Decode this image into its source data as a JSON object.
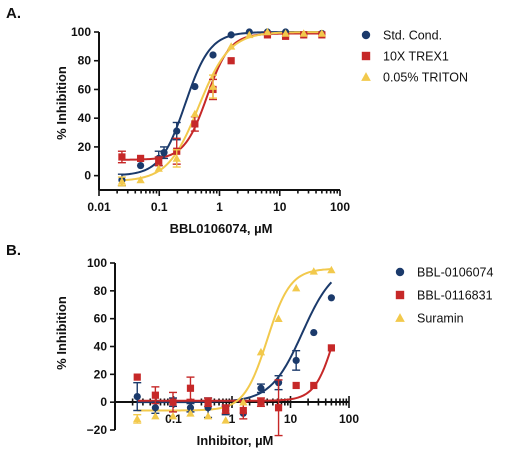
{
  "colors": {
    "std": "#1b3a6b",
    "trex": "#c62828",
    "triton": "#f2c94c",
    "text": "#111111"
  },
  "chart_data": [
    {
      "panel_label": "A.",
      "type": "scatter",
      "xscale": "log",
      "xlim": [
        0.01,
        100
      ],
      "ylim": [
        -10,
        100
      ],
      "xticks": [
        0.01,
        0.1,
        1,
        10,
        100
      ],
      "xtick_labels": [
        "0.01",
        "0.1",
        "1",
        "10",
        "100"
      ],
      "yticks": [
        0,
        20,
        40,
        60,
        80,
        100
      ],
      "ytick_labels": [
        "0",
        "20",
        "40",
        "60",
        "80",
        "100"
      ],
      "xlabel": "BBL0106074, µM",
      "ylabel": "% Inhibition",
      "legend_position": "right",
      "series": [
        {
          "name": "Std. Cond.",
          "marker": "circle",
          "color": "#1b3a6b",
          "fit": {
            "bottom": 0,
            "top": 100,
            "ec50": 0.27,
            "hill": 2.1
          },
          "points": [
            {
              "x": 0.024,
              "y": -3,
              "err": 4
            },
            {
              "x": 0.049,
              "y": 7,
              "err": 0
            },
            {
              "x": 0.098,
              "y": 12,
              "err": 5
            },
            {
              "x": 0.12,
              "y": 16,
              "err": 4
            },
            {
              "x": 0.195,
              "y": 31,
              "err": 6
            },
            {
              "x": 0.39,
              "y": 62,
              "err": 0
            },
            {
              "x": 0.78,
              "y": 84,
              "err": 0
            },
            {
              "x": 1.56,
              "y": 98,
              "err": 0
            },
            {
              "x": 3.125,
              "y": 100,
              "err": 0
            },
            {
              "x": 6.25,
              "y": 100,
              "err": 0
            },
            {
              "x": 12.5,
              "y": 100,
              "err": 0
            },
            {
              "x": 25,
              "y": 98,
              "err": 0
            },
            {
              "x": 50,
              "y": 99,
              "err": 0
            }
          ]
        },
        {
          "name": "10X TREX1",
          "marker": "square",
          "color": "#c62828",
          "fit": {
            "bottom": 11,
            "top": 99,
            "ec50": 0.62,
            "hill": 2.3
          },
          "points": [
            {
              "x": 0.024,
              "y": 13,
              "err": 4
            },
            {
              "x": 0.049,
              "y": 12,
              "err": 0
            },
            {
              "x": 0.098,
              "y": 10,
              "err": 3
            },
            {
              "x": 0.195,
              "y": 17,
              "err": 9
            },
            {
              "x": 0.39,
              "y": 36,
              "err": 5
            },
            {
              "x": 0.78,
              "y": 60,
              "err": 7
            },
            {
              "x": 1.56,
              "y": 80,
              "err": 0
            },
            {
              "x": 6.25,
              "y": 98,
              "err": 0
            },
            {
              "x": 12.5,
              "y": 97,
              "err": 0
            },
            {
              "x": 25,
              "y": 98,
              "err": 0
            },
            {
              "x": 50,
              "y": 98,
              "err": 0
            }
          ]
        },
        {
          "name": "0.05% TRITON",
          "marker": "triangle",
          "color": "#f2c94c",
          "fit": {
            "bottom": -4,
            "top": 100,
            "ec50": 0.45,
            "hill": 1.7
          },
          "points": [
            {
              "x": 0.024,
              "y": -4,
              "err": 3
            },
            {
              "x": 0.049,
              "y": -3,
              "err": 0
            },
            {
              "x": 0.098,
              "y": 5,
              "err": 0
            },
            {
              "x": 0.195,
              "y": 12,
              "err": 6
            },
            {
              "x": 0.39,
              "y": 43,
              "err": 0
            },
            {
              "x": 0.78,
              "y": 62,
              "err": 8
            },
            {
              "x": 1.56,
              "y": 90,
              "err": 0
            },
            {
              "x": 3.125,
              "y": 98,
              "err": 0
            },
            {
              "x": 6.25,
              "y": 100,
              "err": 0
            },
            {
              "x": 12.5,
              "y": 99,
              "err": 0
            },
            {
              "x": 25,
              "y": 99,
              "err": 0
            },
            {
              "x": 50,
              "y": 99,
              "err": 0
            }
          ]
        }
      ]
    },
    {
      "panel_label": "B.",
      "type": "scatter",
      "xscale": "log",
      "xlim": [
        0.01,
        100
      ],
      "ylim": [
        -20,
        100
      ],
      "xticks": [
        0.1,
        1,
        10,
        100
      ],
      "xtick_labels": [
        "0.1",
        "1",
        "10",
        "100"
      ],
      "yticks": [
        -20,
        0,
        20,
        40,
        60,
        80,
        100
      ],
      "ytick_labels": [
        "−20",
        "0",
        "20",
        "40",
        "60",
        "80",
        "100"
      ],
      "xlabel": "Inhibitor, µM",
      "ylabel": "% Inhibition",
      "legend_position": "right",
      "series": [
        {
          "name": "BBL-0106074",
          "marker": "circle",
          "color": "#1b3a6b",
          "fit": {
            "bottom": 0,
            "top": 100,
            "ec50": 16,
            "hill": 1.6
          },
          "points": [
            {
              "x": 0.024,
              "y": 4,
              "err": 10
            },
            {
              "x": 0.049,
              "y": -4,
              "err": 4
            },
            {
              "x": 0.098,
              "y": 0,
              "err": 3
            },
            {
              "x": 0.195,
              "y": -4,
              "err": 3
            },
            {
              "x": 0.39,
              "y": -4,
              "err": 7
            },
            {
              "x": 0.78,
              "y": -6,
              "err": 3
            },
            {
              "x": 1.56,
              "y": -8,
              "err": 0
            },
            {
              "x": 3.125,
              "y": 10,
              "err": 3
            },
            {
              "x": 6.25,
              "y": 14,
              "err": 5
            },
            {
              "x": 12.5,
              "y": 30,
              "err": 7
            },
            {
              "x": 25,
              "y": 50,
              "err": 0
            },
            {
              "x": 50,
              "y": 75,
              "err": 0
            }
          ]
        },
        {
          "name": "BBL-0116831",
          "marker": "square",
          "color": "#c62828",
          "fit": {
            "bottom": 1,
            "top": 100,
            "ec50": 60,
            "hill": 2.5
          },
          "points": [
            {
              "x": 0.024,
              "y": 18,
              "err": 0
            },
            {
              "x": 0.049,
              "y": 5,
              "err": 6
            },
            {
              "x": 0.098,
              "y": 0,
              "err": 7
            },
            {
              "x": 0.195,
              "y": 10,
              "err": 8
            },
            {
              "x": 0.39,
              "y": 0,
              "err": 3
            },
            {
              "x": 0.78,
              "y": -5,
              "err": 3
            },
            {
              "x": 1.56,
              "y": -6,
              "err": 6
            },
            {
              "x": 3.125,
              "y": 0,
              "err": 3
            },
            {
              "x": 6.25,
              "y": -4,
              "err": 20
            },
            {
              "x": 12.5,
              "y": 12,
              "err": 0
            },
            {
              "x": 25,
              "y": 12,
              "err": 0
            },
            {
              "x": 50,
              "y": 39,
              "err": 0
            }
          ]
        },
        {
          "name": "Suramin",
          "marker": "triangle",
          "color": "#f2c94c",
          "fit": {
            "bottom": -6,
            "top": 96,
            "ec50": 4,
            "hill": 2.2
          },
          "points": [
            {
              "x": 0.024,
              "y": -12,
              "err": 3
            },
            {
              "x": 0.049,
              "y": -10,
              "err": 0
            },
            {
              "x": 0.098,
              "y": -10,
              "err": 0
            },
            {
              "x": 0.195,
              "y": -8,
              "err": 0
            },
            {
              "x": 0.39,
              "y": -10,
              "err": 0
            },
            {
              "x": 0.78,
              "y": -13,
              "err": 0
            },
            {
              "x": 1.56,
              "y": 0,
              "err": 0
            },
            {
              "x": 3.125,
              "y": 36,
              "err": 0
            },
            {
              "x": 6.25,
              "y": 60,
              "err": 0
            },
            {
              "x": 12.5,
              "y": 82,
              "err": 0
            },
            {
              "x": 25,
              "y": 94,
              "err": 0
            },
            {
              "x": 50,
              "y": 95,
              "err": 0
            }
          ]
        }
      ]
    }
  ]
}
